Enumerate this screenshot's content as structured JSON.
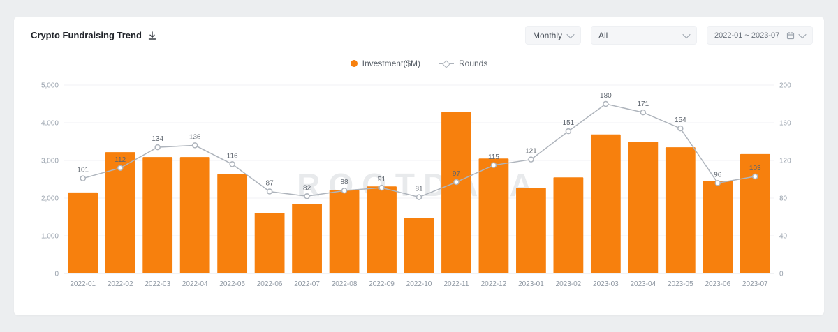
{
  "page": {
    "background": "#eceef0",
    "card_background": "#ffffff"
  },
  "header": {
    "title": "Crypto Fundraising Trend"
  },
  "controls": {
    "frequency": {
      "value": "Monthly"
    },
    "category": {
      "value": "All"
    },
    "date_range": {
      "value": "2022-01 ~ 2023-07"
    }
  },
  "legend": [
    {
      "label": "Investment($M)",
      "marker": "orange-dot",
      "color": "#F7800D"
    },
    {
      "label": "Rounds",
      "marker": "line-diamond",
      "color": "#AEB4BC"
    }
  ],
  "watermark": "ROOTDATA",
  "chart_data": {
    "type": "bar",
    "combo": "bar+line",
    "title": "Crypto Fundraising Trend",
    "legend_position": "top-center",
    "grid": "faint-horizontal",
    "categories": [
      "2022-01",
      "2022-02",
      "2022-03",
      "2022-04",
      "2022-05",
      "2022-06",
      "2022-07",
      "2022-08",
      "2022-09",
      "2022-10",
      "2022-11",
      "2022-12",
      "2023-01",
      "2023-02",
      "2023-03",
      "2023-04",
      "2023-05",
      "2023-06",
      "2023-07"
    ],
    "series": [
      {
        "name": "Investment($M)",
        "type": "bar",
        "y_axis": "left",
        "color": "#F7800D",
        "values": [
          2150,
          3220,
          3090,
          3090,
          2640,
          1610,
          1850,
          2210,
          2310,
          1480,
          4290,
          3050,
          2270,
          2550,
          3690,
          3500,
          3350,
          2450,
          3170
        ]
      },
      {
        "name": "Rounds",
        "type": "line",
        "y_axis": "right",
        "color": "#AEB4BC",
        "values": [
          101,
          112,
          134,
          136,
          116,
          87,
          82,
          88,
          91,
          81,
          97,
          115,
          121,
          151,
          180,
          171,
          154,
          96,
          103
        ]
      }
    ],
    "left_axis": {
      "title": "Investment($M)",
      "range": [
        0,
        5000
      ],
      "tick_values": [
        0,
        1000,
        2000,
        3000,
        4000,
        5000
      ],
      "ticks": [
        "0",
        "1,000",
        "2,000",
        "3,000",
        "4,000",
        "5,000"
      ]
    },
    "right_axis": {
      "title": "Rounds",
      "range": [
        0,
        200
      ],
      "tick_values": [
        0,
        40,
        80,
        120,
        160,
        200
      ],
      "ticks": [
        "0",
        "40",
        "80",
        "120",
        "160",
        "200"
      ]
    }
  }
}
